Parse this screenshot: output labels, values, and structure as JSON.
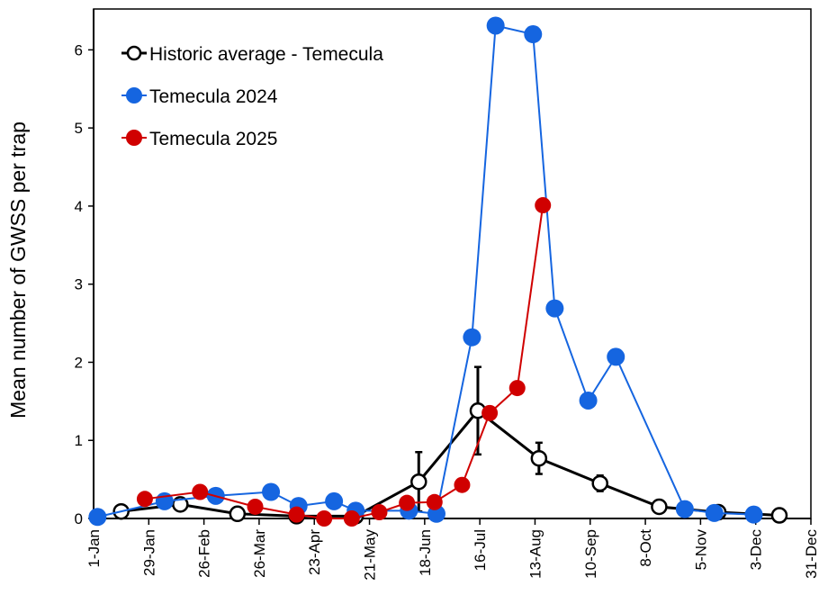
{
  "chart_data": {
    "type": "line",
    "title": "",
    "xlabel": "",
    "ylabel": "Mean number of GWSS per trap",
    "xlim_days": [
      0,
      364
    ],
    "ylim": [
      0,
      6.5
    ],
    "y_ticks": [
      0,
      1,
      2,
      3,
      4,
      5,
      6
    ],
    "x_tick_labels": [
      "1-Jan",
      "29-Jan",
      "26-Feb",
      "26-Mar",
      "23-Apr",
      "21-May",
      "18-Jun",
      "16-Jul",
      "13-Aug",
      "10-Sep",
      "8-Oct",
      "5-Nov",
      "3-Dec",
      "31-Dec"
    ],
    "x_unit": "day of year (1-Jan = 0)",
    "grid": false,
    "legend_position": "top-left",
    "series": [
      {
        "name": "Historic average - Temecula",
        "color": "#000000",
        "marker": "open-circle",
        "x": [
          14,
          44,
          73,
          103,
          133,
          165,
          195,
          226,
          257,
          287,
          317,
          348
        ],
        "y": [
          0.09,
          0.18,
          0.06,
          0.03,
          0.03,
          0.47,
          1.38,
          0.77,
          0.45,
          0.15,
          0.08,
          0.04
        ],
        "error": [
          0,
          0,
          0,
          0,
          0,
          0.38,
          0.56,
          0.2,
          0.1,
          0,
          0,
          0
        ]
      },
      {
        "name": "Temecula 2024",
        "color": "#1565e0",
        "marker": "filled-circle",
        "x": [
          2,
          36,
          62,
          90,
          104,
          122,
          133,
          160,
          174,
          192,
          204,
          223,
          234,
          251,
          265,
          300,
          315,
          335
        ],
        "y": [
          0.02,
          0.22,
          0.29,
          0.34,
          0.16,
          0.22,
          0.1,
          0.1,
          0.06,
          2.32,
          6.31,
          6.2,
          2.69,
          1.51,
          2.07,
          0.12,
          0.07,
          0.05
        ]
      },
      {
        "name": "Temecula 2025",
        "color": "#d00000",
        "marker": "filled-circle",
        "x": [
          26,
          54,
          82,
          103,
          117,
          131,
          145,
          159,
          173,
          187,
          201,
          215,
          228
        ],
        "y": [
          0.25,
          0.34,
          0.15,
          0.05,
          0.0,
          0.0,
          0.08,
          0.2,
          0.21,
          0.43,
          1.35,
          1.67,
          4.01
        ]
      }
    ]
  }
}
